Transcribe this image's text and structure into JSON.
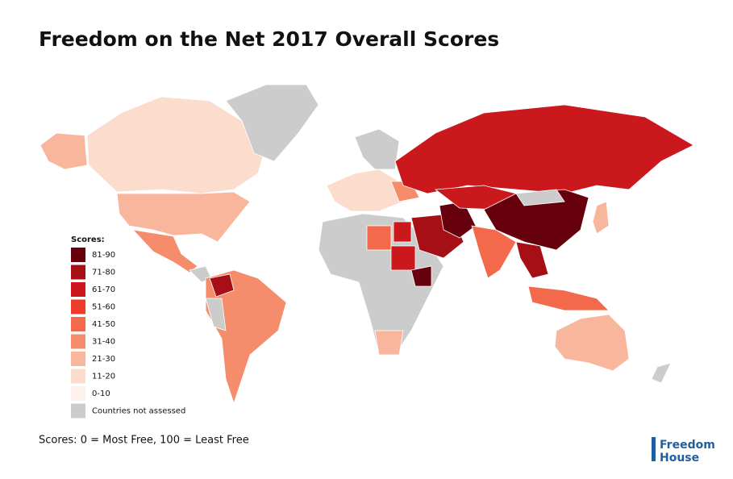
{
  "header": {
    "title": "Freedom on the Net 2017 Overall Scores"
  },
  "legend": {
    "title": "Scores:",
    "items": [
      {
        "label": "81-90",
        "color": "#67000d"
      },
      {
        "label": "71-80",
        "color": "#a50f15"
      },
      {
        "label": "61-70",
        "color": "#cb181d"
      },
      {
        "label": "51-60",
        "color": "#ef3b2c"
      },
      {
        "label": "41-50",
        "color": "#f26a4b"
      },
      {
        "label": "31-40",
        "color": "#f58c6c"
      },
      {
        "label": "21-30",
        "color": "#f8b69c"
      },
      {
        "label": "11-20",
        "color": "#fcdccd"
      },
      {
        "label": "0-10",
        "color": "#fff1eb"
      },
      {
        "label": "Countries not assessed",
        "color": "#cccccc"
      }
    ]
  },
  "footer": {
    "note": "Scores: 0 = Most Free, 100 = Least Free",
    "logo_line1": "Freedom",
    "logo_line2": "House"
  }
}
